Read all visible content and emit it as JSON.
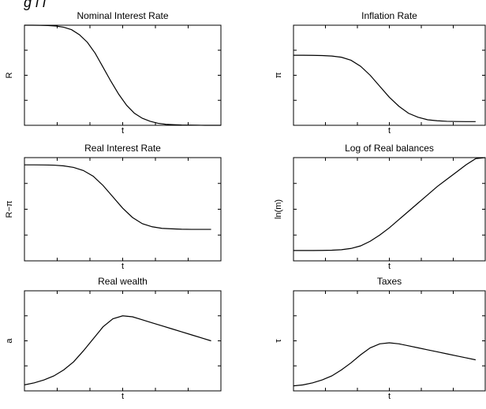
{
  "figure": {
    "caption_fragment": "g    l                              l"
  },
  "chart_data": [
    {
      "type": "line",
      "title": "Nominal Interest Rate",
      "xlabel": "t",
      "ylabel": "R",
      "x_ticks": 6,
      "y_ticks": 4,
      "x": [
        0,
        0.04,
        0.08,
        0.12,
        0.16,
        0.2,
        0.24,
        0.28,
        0.32,
        0.36,
        0.4,
        0.44,
        0.48,
        0.52,
        0.56,
        0.6,
        0.64,
        0.68,
        0.72,
        0.76,
        0.8,
        0.84,
        0.88,
        0.92,
        0.96,
        1
      ],
      "series": [
        {
          "values": [
            1.0,
            1.0,
            0.999,
            0.997,
            0.992,
            0.98,
            0.955,
            0.905,
            0.83,
            0.72,
            0.58,
            0.44,
            0.31,
            0.2,
            0.12,
            0.07,
            0.04,
            0.02,
            0.01,
            0.006,
            0.003,
            0.002,
            0.001,
            0.0,
            0.0,
            0.0
          ]
        }
      ],
      "xlim": [
        0,
        1
      ],
      "ylim": [
        0,
        1
      ]
    },
    {
      "type": "line",
      "title": "Inflation Rate",
      "xlabel": "t",
      "ylabel": "π",
      "x_ticks": 6,
      "y_ticks": 4,
      "x": [
        0.0,
        0.05,
        0.1,
        0.15,
        0.2,
        0.25,
        0.3,
        0.35,
        0.4,
        0.45,
        0.5,
        0.55,
        0.6,
        0.65,
        0.7,
        0.75,
        0.8,
        0.85,
        0.9,
        0.95
      ],
      "series": [
        {
          "values": [
            0.7,
            0.7,
            0.699,
            0.697,
            0.692,
            0.68,
            0.65,
            0.59,
            0.5,
            0.39,
            0.28,
            0.19,
            0.12,
            0.08,
            0.055,
            0.045,
            0.04,
            0.038,
            0.037,
            0.037
          ]
        }
      ],
      "xlim": [
        0,
        1
      ],
      "ylim": [
        0,
        1
      ]
    },
    {
      "type": "line",
      "title": "Real Interest Rate",
      "xlabel": "t",
      "ylabel": "R−π",
      "x_ticks": 6,
      "y_ticks": 4,
      "x": [
        0.0,
        0.05,
        0.1,
        0.15,
        0.2,
        0.25,
        0.3,
        0.35,
        0.4,
        0.45,
        0.5,
        0.55,
        0.6,
        0.65,
        0.7,
        0.75,
        0.8,
        0.85,
        0.9,
        0.95
      ],
      "series": [
        {
          "values": [
            0.93,
            0.93,
            0.929,
            0.927,
            0.92,
            0.905,
            0.875,
            0.82,
            0.73,
            0.62,
            0.51,
            0.42,
            0.36,
            0.33,
            0.315,
            0.31,
            0.306,
            0.305,
            0.305,
            0.305
          ]
        }
      ],
      "xlim": [
        0,
        1
      ],
      "ylim": [
        0,
        1
      ]
    },
    {
      "type": "line",
      "title": "Log of Real balances",
      "xlabel": "t",
      "ylabel": "ln(m)",
      "x_ticks": 6,
      "y_ticks": 4,
      "x": [
        0.0,
        0.05,
        0.1,
        0.15,
        0.2,
        0.25,
        0.3,
        0.35,
        0.4,
        0.45,
        0.5,
        0.55,
        0.6,
        0.65,
        0.7,
        0.75,
        0.8,
        0.85,
        0.9,
        0.95,
        1.0
      ],
      "series": [
        {
          "values": [
            0.1,
            0.1,
            0.1,
            0.101,
            0.103,
            0.108,
            0.12,
            0.145,
            0.19,
            0.25,
            0.32,
            0.4,
            0.48,
            0.56,
            0.64,
            0.72,
            0.79,
            0.86,
            0.93,
            0.99,
            1.0
          ]
        }
      ],
      "xlim": [
        0,
        1
      ],
      "ylim": [
        0,
        1
      ]
    },
    {
      "type": "line",
      "title": "Real wealth",
      "xlabel": "t",
      "ylabel": "a",
      "x_ticks": 6,
      "y_ticks": 4,
      "x": [
        0.0,
        0.05,
        0.1,
        0.15,
        0.2,
        0.25,
        0.3,
        0.35,
        0.4,
        0.45,
        0.5,
        0.55,
        0.6,
        0.65,
        0.7,
        0.75,
        0.8,
        0.85,
        0.9,
        0.95
      ],
      "series": [
        {
          "values": [
            0.06,
            0.08,
            0.11,
            0.15,
            0.21,
            0.29,
            0.4,
            0.52,
            0.64,
            0.72,
            0.75,
            0.74,
            0.71,
            0.68,
            0.65,
            0.62,
            0.59,
            0.56,
            0.53,
            0.5
          ]
        }
      ],
      "xlim": [
        0,
        1
      ],
      "ylim": [
        0,
        1
      ]
    },
    {
      "type": "line",
      "title": "Taxes",
      "xlabel": "t",
      "ylabel": "τ",
      "x_ticks": 6,
      "y_ticks": 4,
      "x": [
        0.0,
        0.05,
        0.1,
        0.15,
        0.2,
        0.25,
        0.3,
        0.35,
        0.4,
        0.45,
        0.5,
        0.55,
        0.6,
        0.65,
        0.7,
        0.75,
        0.8,
        0.85,
        0.9,
        0.95
      ],
      "series": [
        {
          "values": [
            0.05,
            0.06,
            0.08,
            0.11,
            0.15,
            0.21,
            0.28,
            0.36,
            0.43,
            0.47,
            0.48,
            0.47,
            0.45,
            0.43,
            0.41,
            0.39,
            0.37,
            0.35,
            0.33,
            0.31
          ]
        }
      ],
      "xlim": [
        0,
        1
      ],
      "ylim": [
        0,
        1
      ]
    }
  ]
}
